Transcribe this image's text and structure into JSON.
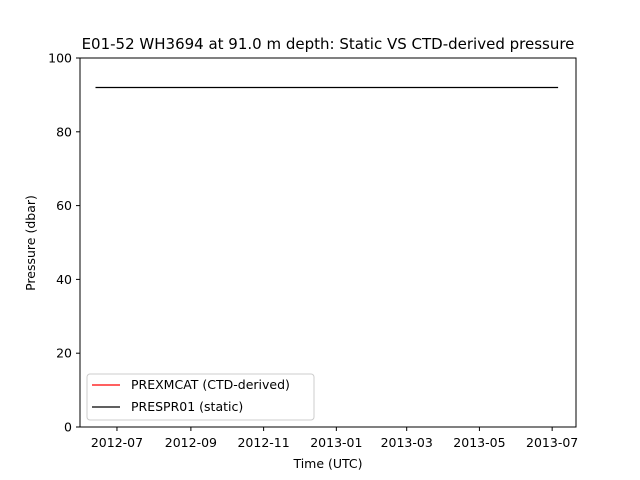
{
  "chart_data": {
    "type": "line",
    "title": "E01-52 WH3694 at 91.0 m depth: Static VS CTD-derived pressure",
    "xlabel": "Time (UTC)",
    "ylabel": "Pressure (dbar)",
    "ylim": [
      0,
      100
    ],
    "xlim": [
      "2012-05-31",
      "2013-07-21"
    ],
    "x_ticks": [
      {
        "date": "2012-07-01",
        "label": "2012-07"
      },
      {
        "date": "2012-09-01",
        "label": "2012-09"
      },
      {
        "date": "2012-11-01",
        "label": "2012-11"
      },
      {
        "date": "2013-01-01",
        "label": "2013-01"
      },
      {
        "date": "2013-03-01",
        "label": "2013-03"
      },
      {
        "date": "2013-05-01",
        "label": "2013-05"
      },
      {
        "date": "2013-07-01",
        "label": "2013-07"
      }
    ],
    "y_ticks": [
      0,
      20,
      40,
      60,
      80,
      100
    ],
    "grid": false,
    "legend": {
      "position": "lower-left"
    },
    "series": [
      {
        "name": "PREXMCAT (CTD-derived)",
        "color": "#ff0000",
        "points": []
      },
      {
        "name": "PRESPR01 (static)",
        "color": "#000000",
        "points": [
          {
            "x": "2012-06-13",
            "y": 92
          },
          {
            "x": "2013-07-06",
            "y": 92
          }
        ]
      }
    ]
  }
}
